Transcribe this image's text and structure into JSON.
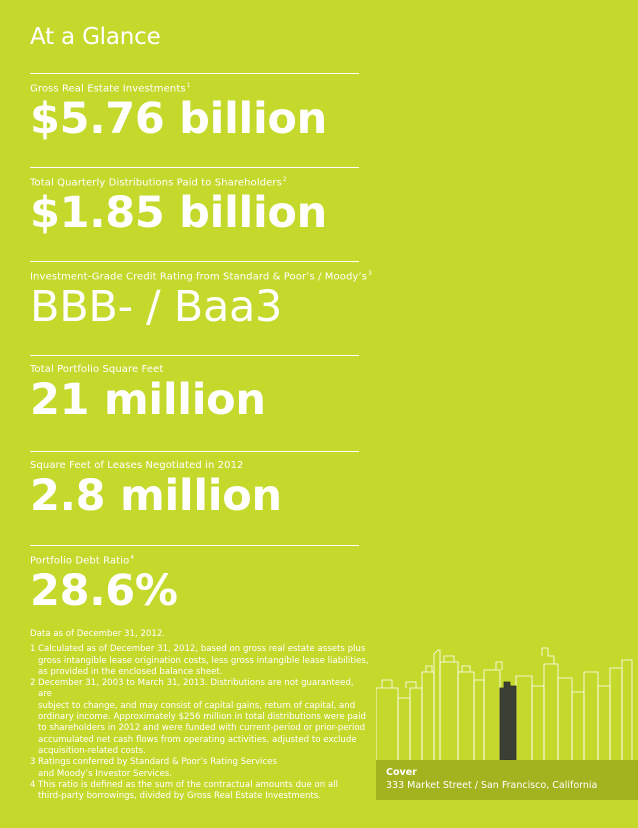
{
  "header": {
    "title": "At a Glance"
  },
  "stats": [
    {
      "label": "Gross Real Estate Investments",
      "footnote": "1",
      "value": "$5.76 billion"
    },
    {
      "label": "Total Quarterly Distributions Paid to Shareholders",
      "footnote": "2",
      "value": "$1.85 billion"
    },
    {
      "label": "Investment-Grade Credit Rating from Standard & Poor’s / Moody’s",
      "footnote": "3",
      "value": "BBB- / Baa3"
    },
    {
      "label": "Total Portfolio Square Feet",
      "footnote": "",
      "value": "21 million"
    },
    {
      "label": "Square Feet of Leases Negotiated in 2012",
      "footnote": "",
      "value": "2.8 million"
    },
    {
      "label": "Portfolio Debt Ratio",
      "footnote": "4",
      "value": "28.6%"
    }
  ],
  "notes": {
    "as_of": "Data as of December 31, 2012.",
    "items": [
      {
        "num": "1",
        "lines": [
          "Calculated as of December 31, 2012, based on gross real estate assets plus",
          "gross intangible lease origination costs, less gross intangible lease liabilities,",
          "as provided in the enclosed balance sheet."
        ]
      },
      {
        "num": "2",
        "lines": [
          "December 31, 2003 to March 31, 2013. Distributions are not guaranteed, are",
          "subject to change, and may consist of capital gains, return of capital, and",
          "ordinary income. Approximately $256 million in total distributions were paid",
          "to shareholders in 2012 and were funded with current-period or prior-period",
          "accumulated net cash flows from operating activities, adjusted to exclude",
          "acquisition-related costs."
        ]
      },
      {
        "num": "3",
        "lines": [
          "Ratings conferred by Standard & Poor’s Rating Services",
          "and Moody’s Investor Services."
        ]
      },
      {
        "num": "4",
        "lines": [
          "This ratio is defined as the sum of the contractual amounts due on all",
          "third-party borrowings, divided by Gross Real Estate Investments."
        ]
      }
    ]
  },
  "cover": {
    "title": "Cover",
    "caption": "333 Market Street / San Francisco, California"
  },
  "colors": {
    "background": "#c5d92d",
    "band": "#a3b31f",
    "highlight_building": "#3a3f33",
    "text": "#ffffff"
  }
}
